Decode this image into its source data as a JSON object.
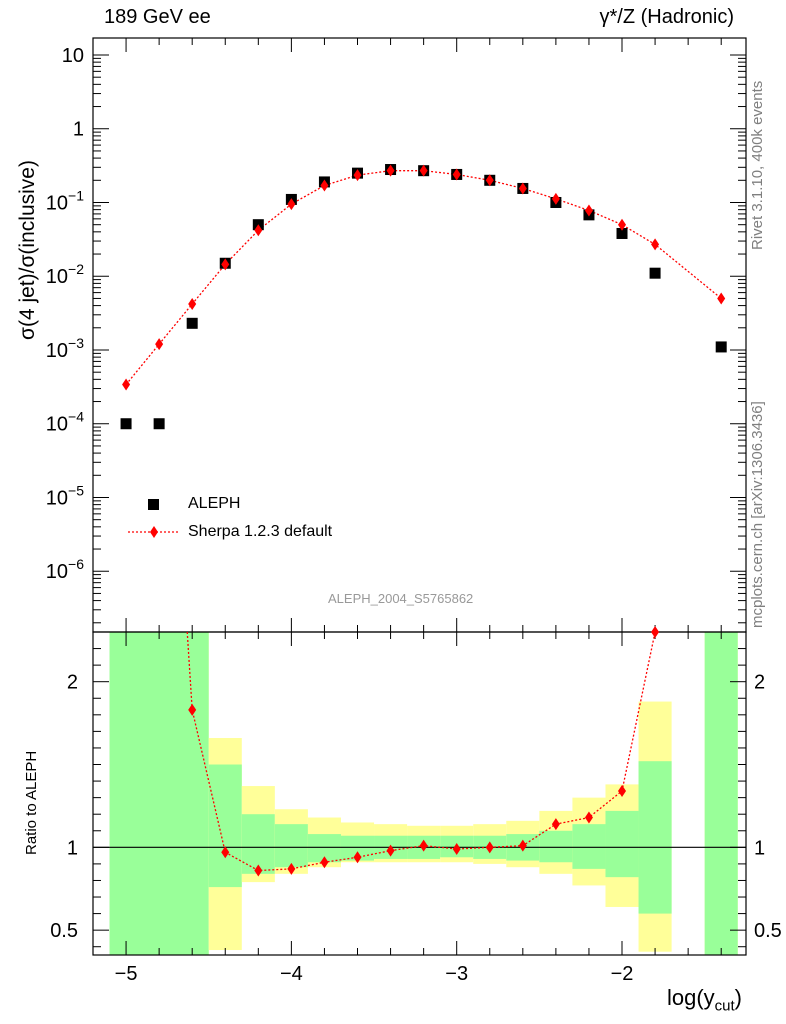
{
  "header": {
    "left_title": "189 GeV ee",
    "right_title": "γ*/Z (Hadronic)"
  },
  "side_labels": {
    "rivet": "Rivet 3.1.10,  400k events",
    "mcplots": "mcplots.cern.ch [arXiv:1306.3436]"
  },
  "analysis_name": "ALEPH_2004_S5765862",
  "colors": {
    "data": "#000000",
    "mc": "#ff0000",
    "band_inner": "#99ff99",
    "band_outer": "#ffff99"
  },
  "chart_data": [
    {
      "type": "scatter",
      "title": "189 GeV ee",
      "xlabel": "log(y_cut)",
      "xlabel_main": "log(y",
      "xlabel_sub": "cut",
      "xlabel_close": ")",
      "ylabel": "σ(4 jet)/σ(inclusive)",
      "yscale": "log",
      "xlim": [
        -5.2,
        -1.25
      ],
      "ylim": [
        1.5e-07,
        17
      ],
      "x_ticks": [
        -5,
        -4,
        -3,
        -2
      ],
      "y_ticks": [
        {
          "value": 1e-06,
          "base": "10",
          "exp": "−6"
        },
        {
          "value": 1e-05,
          "base": "10",
          "exp": "−5"
        },
        {
          "value": 0.0001,
          "base": "10",
          "exp": "−4"
        },
        {
          "value": 0.001,
          "base": "10",
          "exp": "−3"
        },
        {
          "value": 0.01,
          "base": "10",
          "exp": "−2"
        },
        {
          "value": 0.1,
          "base": "10",
          "exp": "−1"
        },
        {
          "value": 1,
          "base": "1",
          "exp": ""
        },
        {
          "value": 10,
          "base": "10",
          "exp": ""
        }
      ],
      "legend": [
        {
          "label": "ALEPH",
          "marker": "square"
        },
        {
          "label": "Sherpa 1.2.3 default",
          "marker": "diamond"
        }
      ],
      "series": [
        {
          "name": "ALEPH",
          "x": [
            -5.0,
            -4.8,
            -4.6,
            -4.4,
            -4.2,
            -4.0,
            -3.8,
            -3.6,
            -3.4,
            -3.2,
            -3.0,
            -2.8,
            -2.6,
            -2.4,
            -2.2,
            -2.0,
            -1.8,
            -1.4
          ],
          "y": [
            0.0001,
            0.0001,
            0.0023,
            0.015,
            0.05,
            0.11,
            0.19,
            0.25,
            0.28,
            0.27,
            0.24,
            0.2,
            0.155,
            0.1,
            0.068,
            0.038,
            0.011,
            0.0011
          ]
        },
        {
          "name": "Sherpa 1.2.3 default",
          "x": [
            -5.0,
            -4.8,
            -4.6,
            -4.4,
            -4.2,
            -4.0,
            -3.8,
            -3.6,
            -3.4,
            -3.2,
            -3.0,
            -2.8,
            -2.6,
            -2.4,
            -2.2,
            -2.0,
            -1.8,
            -1.4
          ],
          "y": [
            0.00034,
            0.0012,
            0.0042,
            0.0145,
            0.042,
            0.095,
            0.17,
            0.235,
            0.27,
            0.27,
            0.24,
            0.2,
            0.155,
            0.112,
            0.078,
            0.05,
            0.027,
            0.005
          ]
        }
      ]
    },
    {
      "type": "line",
      "title": "Ratio to ALEPH",
      "ylabel": "Ratio to ALEPH",
      "xlim": [
        -5.2,
        -1.25
      ],
      "ylim": [
        0.35,
        2.3
      ],
      "y_ticks": [
        0.5,
        1,
        2
      ],
      "y_tick_labels": [
        "0.5",
        "1",
        "2"
      ],
      "bins": [
        {
          "x0": -5.1,
          "x1": -4.5,
          "inner": [
            0.35,
            2.3
          ],
          "outer": [
            0.35,
            2.3
          ]
        },
        {
          "x0": -4.5,
          "x1": -4.3,
          "inner": [
            0.76,
            1.5
          ],
          "outer": [
            0.38,
            1.66
          ]
        },
        {
          "x0": -4.3,
          "x1": -4.1,
          "inner": [
            0.84,
            1.2
          ],
          "outer": [
            0.79,
            1.37
          ]
        },
        {
          "x0": -4.1,
          "x1": -3.9,
          "inner": [
            0.88,
            1.14
          ],
          "outer": [
            0.84,
            1.23
          ]
        },
        {
          "x0": -3.9,
          "x1": -3.7,
          "inner": [
            0.91,
            1.08
          ],
          "outer": [
            0.88,
            1.18
          ]
        },
        {
          "x0": -3.7,
          "x1": -3.5,
          "inner": [
            0.92,
            1.07
          ],
          "outer": [
            0.91,
            1.15
          ]
        },
        {
          "x0": -3.5,
          "x1": -3.3,
          "inner": [
            0.93,
            1.07
          ],
          "outer": [
            0.91,
            1.14
          ]
        },
        {
          "x0": -3.3,
          "x1": -3.1,
          "inner": [
            0.93,
            1.07
          ],
          "outer": [
            0.91,
            1.13
          ]
        },
        {
          "x0": -3.1,
          "x1": -2.9,
          "inner": [
            0.94,
            1.07
          ],
          "outer": [
            0.91,
            1.13
          ]
        },
        {
          "x0": -2.9,
          "x1": -2.7,
          "inner": [
            0.93,
            1.07
          ],
          "outer": [
            0.9,
            1.14
          ]
        },
        {
          "x0": -2.7,
          "x1": -2.5,
          "inner": [
            0.92,
            1.08
          ],
          "outer": [
            0.88,
            1.16
          ]
        },
        {
          "x0": -2.5,
          "x1": -2.3,
          "inner": [
            0.91,
            1.1
          ],
          "outer": [
            0.84,
            1.22
          ]
        },
        {
          "x0": -2.3,
          "x1": -2.1,
          "inner": [
            0.87,
            1.14
          ],
          "outer": [
            0.77,
            1.3
          ]
        },
        {
          "x0": -2.1,
          "x1": -1.9,
          "inner": [
            0.82,
            1.22
          ],
          "outer": [
            0.64,
            1.38
          ]
        },
        {
          "x0": -1.9,
          "x1": -1.7,
          "inner": [
            0.6,
            1.52
          ],
          "outer": [
            0.37,
            1.88
          ]
        },
        {
          "x0": -1.5,
          "x1": -1.3,
          "inner": [
            0.35,
            2.3
          ],
          "outer": [
            0.35,
            2.3
          ]
        }
      ],
      "series": [
        {
          "name": "Sherpa 1.2.3 default / ALEPH",
          "x": [
            -4.6,
            -4.4,
            -4.2,
            -4.0,
            -3.8,
            -3.6,
            -3.4,
            -3.2,
            -3.0,
            -2.8,
            -2.6,
            -2.4,
            -2.2,
            -2.0,
            -1.8
          ],
          "y": [
            1.83,
            0.97,
            0.86,
            0.87,
            0.91,
            0.94,
            0.98,
            1.01,
            0.99,
            1.0,
            1.01,
            1.14,
            1.18,
            1.34,
            2.3
          ],
          "line_start": {
            "x": -4.63,
            "y": 2.3
          }
        }
      ]
    }
  ]
}
